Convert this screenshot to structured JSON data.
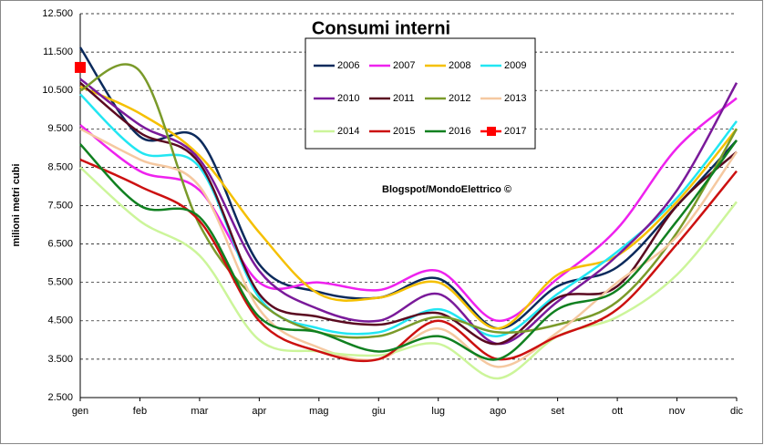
{
  "chart_data": {
    "type": "line",
    "title": "Consumi interni",
    "y_label": "milioni metri cubi",
    "annotation": "Blogspot/MondoElettrico ©",
    "categories": [
      "gen",
      "feb",
      "mar",
      "apr",
      "mag",
      "giu",
      "lug",
      "ago",
      "set",
      "ott",
      "nov",
      "dic"
    ],
    "ylim": [
      2500,
      12500
    ],
    "yticks": [
      {
        "value": 2500,
        "label": "2.500"
      },
      {
        "value": 3500,
        "label": "3.500"
      },
      {
        "value": 4500,
        "label": "4.500"
      },
      {
        "value": 5500,
        "label": "5.500"
      },
      {
        "value": 6500,
        "label": "6.500"
      },
      {
        "value": 7500,
        "label": "7.500"
      },
      {
        "value": 8500,
        "label": "8.500"
      },
      {
        "value": 9500,
        "label": "9.500"
      },
      {
        "value": 10500,
        "label": "10.500"
      },
      {
        "value": 11500,
        "label": "11.500"
      },
      {
        "value": 12500,
        "label": "12.500"
      }
    ],
    "grid": true,
    "series": [
      {
        "name": "2006",
        "color": "#0b2a5c",
        "values": [
          11620,
          9300,
          9220,
          5970,
          5250,
          5100,
          5600,
          4300,
          5400,
          5900,
          7500,
          9200
        ]
      },
      {
        "name": "2007",
        "color": "#ee22ee",
        "values": [
          9600,
          8400,
          7900,
          5500,
          5500,
          5300,
          5800,
          4500,
          5600,
          6900,
          9000,
          10300
        ]
      },
      {
        "name": "2008",
        "color": "#f5c000",
        "values": [
          10600,
          9900,
          8800,
          6800,
          5200,
          5100,
          5500,
          4300,
          5700,
          6200,
          7600,
          9500
        ]
      },
      {
        "name": "2009",
        "color": "#22e6f2",
        "values": [
          10400,
          8900,
          8500,
          5100,
          4300,
          4200,
          4800,
          4100,
          5200,
          6300,
          7700,
          9700
        ]
      },
      {
        "name": "2010",
        "color": "#7a1a9a",
        "values": [
          10800,
          9600,
          8700,
          5800,
          4800,
          4500,
          5200,
          3900,
          5000,
          6200,
          7900,
          10700
        ]
      },
      {
        "name": "2011",
        "color": "#5a0a20",
        "values": [
          10700,
          9400,
          8600,
          5200,
          4600,
          4400,
          4700,
          3900,
          5100,
          5400,
          7500,
          8900
        ]
      },
      {
        "name": "2012",
        "color": "#7a9a2a",
        "values": [
          10500,
          11000,
          7000,
          5000,
          4200,
          4100,
          4600,
          4200,
          4400,
          5000,
          6800,
          9500
        ]
      },
      {
        "name": "2013",
        "color": "#f5c8a0",
        "values": [
          9500,
          8700,
          8000,
          4800,
          3800,
          3500,
          4300,
          3300,
          4200,
          5500,
          6700,
          8900
        ]
      },
      {
        "name": "2014",
        "color": "#ccf59a",
        "values": [
          8500,
          7100,
          6200,
          4000,
          3700,
          3600,
          3900,
          3000,
          4100,
          4600,
          5700,
          7600
        ]
      },
      {
        "name": "2015",
        "color": "#cc1010",
        "values": [
          8700,
          8000,
          7100,
          4500,
          3700,
          3500,
          4500,
          3500,
          4100,
          4800,
          6500,
          8400
        ]
      },
      {
        "name": "2016",
        "color": "#108020",
        "values": [
          9100,
          7500,
          7200,
          4600,
          4200,
          3700,
          4100,
          3500,
          4800,
          5300,
          7100,
          9200
        ]
      },
      {
        "name": "2017",
        "color": "#ff0000",
        "values": [
          11100,
          null,
          null,
          null,
          null,
          null,
          null,
          null,
          null,
          null,
          null,
          null
        ]
      }
    ]
  }
}
